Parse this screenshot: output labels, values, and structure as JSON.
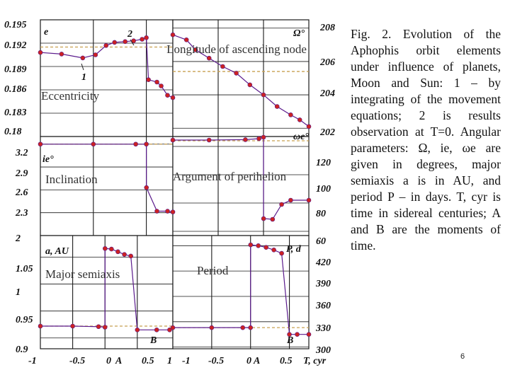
{
  "caption": "Fig. 2. Evolution of the Aphophis orbit elements under influence of planets, Moon and Sun: 1 – by integrating of the movement equations; 2 is results observation at T=0. Angular parameters: Ω, ie, ωe are given in degrees, major semiaxis a is in AU, and period P – in days. T, cyr is time in sidereal centuries; A and B are the moments of time.",
  "page_number": "6",
  "colors": {
    "series": "#cc2222",
    "series_dark": "#5a1a8c",
    "observation_line": "#c8a050",
    "grid": "#1a1a1a",
    "plot_bg": "#ffffff"
  },
  "chart_data": [
    {
      "type": "line",
      "panel": "eccentricity",
      "title": "Eccentricity",
      "ylabel": "e",
      "yticks": [
        "0.195",
        "0.192",
        "0.189",
        "0.186",
        "0.183",
        "0.18"
      ],
      "ylim": [
        0.18,
        0.195
      ],
      "xlim": [
        -1,
        0.25
      ],
      "annotations": [
        "2",
        "1"
      ],
      "observation_value": 0.1915,
      "series": [
        {
          "x": [
            -1.0,
            -0.8,
            -0.6,
            -0.48,
            -0.38,
            -0.3,
            -0.2,
            -0.12,
            -0.04,
            0.0,
            0.02,
            0.1,
            0.14,
            0.2,
            0.25
          ],
          "y": [
            0.1908,
            0.1906,
            0.1901,
            0.1905,
            0.1917,
            0.1921,
            0.1922,
            0.1923,
            0.1925,
            0.1927,
            0.1873,
            0.187,
            0.1865,
            0.1853,
            0.185
          ]
        }
      ]
    },
    {
      "type": "line",
      "panel": "longitude_of_ascending_node",
      "title": "Longitude of ascending node",
      "ylabel": "Ω°",
      "yticks": [
        "208",
        "206",
        "204",
        "202"
      ],
      "ylim": [
        201.5,
        208.5
      ],
      "xlim": [
        -1,
        0.5
      ],
      "observation_value": 205.4,
      "series": [
        {
          "x": [
            -1.0,
            -0.85,
            -0.75,
            -0.6,
            -0.45,
            -0.3,
            -0.15,
            0.0,
            0.15,
            0.3,
            0.4,
            0.5
          ],
          "y": [
            207.6,
            207.3,
            206.7,
            206.2,
            205.7,
            205.3,
            204.6,
            204.0,
            203.3,
            202.8,
            202.5,
            202.1
          ]
        }
      ]
    },
    {
      "type": "line",
      "panel": "inclination",
      "title": "Inclination",
      "ylabel": "ie°",
      "yticks": [
        "3.2",
        "2.9",
        "2.6",
        "2.3",
        "2"
      ],
      "ylim": [
        2.0,
        3.3
      ],
      "xlim": [
        -1,
        0.25
      ],
      "observation_value": 3.2,
      "series": [
        {
          "x": [
            -1.0,
            -0.5,
            -0.1,
            0.0,
            0.001,
            0.1,
            0.2,
            0.25
          ],
          "y": [
            3.2,
            3.2,
            3.2,
            3.2,
            2.63,
            2.32,
            2.32,
            2.31
          ]
        }
      ]
    },
    {
      "type": "line",
      "panel": "argument_of_perihelion",
      "title": "Argument of perihelion",
      "ylabel": "ωe°",
      "yticks": [
        "120",
        "100",
        "80",
        "60"
      ],
      "ylim": [
        57,
        127
      ],
      "xlim": [
        -1,
        0.5
      ],
      "observation_value": 124,
      "series": [
        {
          "x": [
            -1.0,
            -0.6,
            -0.2,
            -0.05,
            0.0,
            0.001,
            0.1,
            0.2,
            0.3,
            0.5
          ],
          "y": [
            124.5,
            124.5,
            124.8,
            125.5,
            126.5,
            69.0,
            68.5,
            79.0,
            82.0,
            82.0
          ]
        }
      ]
    },
    {
      "type": "line",
      "panel": "major_semiaxis",
      "title": "Major semiaxis",
      "ylabel": "a, AU",
      "yticks": [
        "1.05",
        "1",
        "0.95",
        "0.9"
      ],
      "xticks": [
        "-1",
        "-0.5",
        "0",
        "0.5",
        "1"
      ],
      "ylim": [
        0.88,
        1.09
      ],
      "xlim": [
        -1,
        1.05
      ],
      "moments": [
        "A",
        "B"
      ],
      "observation_value": 0.922,
      "series": [
        {
          "x": [
            -1.0,
            -0.5,
            -0.1,
            0.0,
            0.001,
            0.1,
            0.2,
            0.3,
            0.4,
            0.5,
            0.8,
            1.0
          ],
          "y": [
            0.922,
            0.922,
            0.921,
            0.92,
            1.066,
            1.065,
            1.06,
            1.055,
            1.052,
            0.915,
            0.915,
            0.915
          ]
        }
      ]
    },
    {
      "type": "line",
      "panel": "period",
      "title": "Period",
      "ylabel": "P, d",
      "yticks": [
        "420",
        "390",
        "360",
        "330",
        "300"
      ],
      "xticks": [
        "-1",
        "-0.5",
        "0",
        "0.5",
        "T, cyr"
      ],
      "ylim": [
        298,
        432
      ],
      "xlim": [
        -1,
        0.75
      ],
      "moments": [
        "A",
        "B"
      ],
      "observation_value": 323,
      "series": [
        {
          "x": [
            -1.0,
            -0.5,
            -0.1,
            0.0,
            0.001,
            0.1,
            0.2,
            0.3,
            0.4,
            0.5,
            0.6,
            0.75
          ],
          "y": [
            323,
            323,
            323,
            323,
            421,
            420,
            418,
            415,
            411,
            315,
            315,
            315
          ]
        }
      ]
    }
  ]
}
